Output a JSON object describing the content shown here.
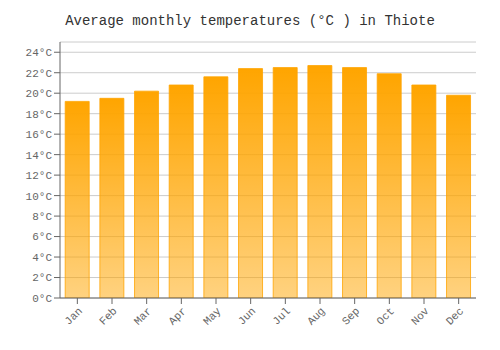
{
  "chart_data": {
    "type": "bar",
    "title": "Average monthly temperatures (°C ) in Thiote",
    "categories": [
      "Jan",
      "Feb",
      "Mar",
      "Apr",
      "May",
      "Jun",
      "Jul",
      "Aug",
      "Sep",
      "Oct",
      "Nov",
      "Dec"
    ],
    "values": [
      19.2,
      19.5,
      20.2,
      20.8,
      21.6,
      22.4,
      22.5,
      22.7,
      22.5,
      21.9,
      20.8,
      19.8
    ],
    "color": "#FFA500",
    "ylim": [
      0,
      25
    ],
    "yticks": [
      {
        "value": 0,
        "label": "0°C"
      },
      {
        "value": 2,
        "label": "2°C"
      },
      {
        "value": 4,
        "label": "4°C"
      },
      {
        "value": 6,
        "label": "6°C"
      },
      {
        "value": 8,
        "label": "8°C"
      },
      {
        "value": 10,
        "label": "10°C"
      },
      {
        "value": 12,
        "label": "12°C"
      },
      {
        "value": 14,
        "label": "14°C"
      },
      {
        "value": 16,
        "label": "16°C"
      },
      {
        "value": 18,
        "label": "18°C"
      },
      {
        "value": 20,
        "label": "20°C"
      },
      {
        "value": 22,
        "label": "22°C"
      },
      {
        "value": 24,
        "label": "24°C"
      }
    ],
    "grid": true
  }
}
